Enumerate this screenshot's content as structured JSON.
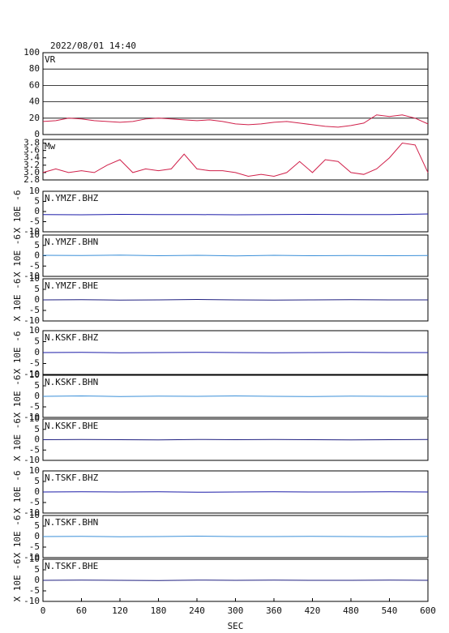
{
  "chart_data": [
    {
      "type": "line",
      "title": "2022/08/01 14:40",
      "xlim": [
        0,
        600
      ],
      "ylim": [
        0,
        100
      ],
      "yticks": [
        0,
        20,
        40,
        60,
        80,
        100
      ],
      "grid": true,
      "x": [
        0,
        20,
        40,
        60,
        80,
        100,
        120,
        140,
        160,
        180,
        200,
        220,
        240,
        260,
        280,
        300,
        320,
        340,
        360,
        380,
        400,
        420,
        440,
        460,
        480,
        500,
        520,
        540,
        560,
        580,
        600
      ],
      "series": [
        {
          "name": "VR",
          "color": "#d0204a",
          "values": [
            16,
            17,
            20,
            19,
            17,
            16,
            15,
            16,
            19,
            20,
            19,
            18,
            17,
            18,
            16,
            13,
            12,
            13,
            15,
            16,
            14,
            12,
            10,
            9,
            11,
            14,
            24,
            22,
            24,
            20,
            13
          ]
        }
      ]
    },
    {
      "type": "line",
      "xlim": [
        0,
        600
      ],
      "ylim": [
        2.8,
        3.9
      ],
      "yticks": [
        {
          "value": 2.8,
          "label": "2.8"
        },
        {
          "value": 3.0,
          "label": "3.0"
        },
        3.2,
        3.4,
        3.6,
        3.8
      ],
      "x": [
        0,
        20,
        40,
        60,
        80,
        100,
        120,
        140,
        160,
        180,
        200,
        220,
        240,
        260,
        280,
        300,
        320,
        340,
        360,
        380,
        400,
        420,
        440,
        460,
        480,
        500,
        520,
        540,
        560,
        580,
        600
      ],
      "series": [
        {
          "name": "Mw",
          "color": "#d0204a",
          "values": [
            3.0,
            3.1,
            3.0,
            3.05,
            3.0,
            3.2,
            3.35,
            3.0,
            3.1,
            3.05,
            3.1,
            3.5,
            3.1,
            3.05,
            3.05,
            3.0,
            2.9,
            2.95,
            2.9,
            3.0,
            3.3,
            3.0,
            3.35,
            3.3,
            3.0,
            2.95,
            3.1,
            3.4,
            3.8,
            3.75,
            3.0
          ]
        }
      ]
    },
    {
      "type": "line",
      "ylabel": "X 10E -6",
      "xlim": [
        0,
        600
      ],
      "ylim": [
        -10,
        10
      ],
      "yticks": [
        -10,
        -5,
        0,
        5,
        10
      ],
      "x": [
        0,
        60,
        120,
        180,
        240,
        300,
        360,
        420,
        480,
        540,
        600
      ],
      "series": [
        {
          "name": "N.YMZF.BHZ",
          "color": "#1c1ca8",
          "values": [
            -1.5,
            -1.6,
            -1.4,
            -1.5,
            -1.5,
            -1.6,
            -1.5,
            -1.4,
            -1.5,
            -1.5,
            -1.2
          ]
        }
      ]
    },
    {
      "type": "line",
      "ylabel": "X 10E -6",
      "xlim": [
        0,
        600
      ],
      "ylim": [
        -10,
        10
      ],
      "yticks": [
        -10,
        -5,
        0,
        5,
        10
      ],
      "x": [
        0,
        60,
        120,
        180,
        240,
        300,
        360,
        420,
        480,
        540,
        600
      ],
      "series": [
        {
          "name": "N.YMZF.BHN",
          "color": "#3a8fd8",
          "values": [
            0.2,
            0.1,
            0.3,
            0,
            0.2,
            -0.1,
            0.2,
            0,
            0.1,
            0,
            0.1
          ]
        }
      ]
    },
    {
      "type": "line",
      "ylabel": "X 10E -6",
      "xlim": [
        0,
        600
      ],
      "ylim": [
        -10,
        10
      ],
      "yticks": [
        -10,
        -5,
        0,
        5,
        10
      ],
      "x": [
        0,
        60,
        120,
        180,
        240,
        300,
        360,
        420,
        480,
        540,
        600
      ],
      "series": [
        {
          "name": "N.YMZF.BHE",
          "color": "#202080",
          "values": [
            0,
            0.1,
            -0.1,
            0,
            0.2,
            0,
            -0.1,
            0,
            0.1,
            0,
            0
          ]
        }
      ]
    },
    {
      "type": "line",
      "ylabel": "X 10E -6",
      "xlim": [
        0,
        600
      ],
      "ylim": [
        -10,
        10
      ],
      "yticks": [
        -10,
        -5,
        0,
        5,
        10
      ],
      "x": [
        0,
        60,
        120,
        180,
        240,
        300,
        360,
        420,
        480,
        540,
        600
      ],
      "series": [
        {
          "name": "N.KSKF.BHZ",
          "color": "#1c1ca8",
          "values": [
            0,
            0.1,
            -0.1,
            0,
            0.1,
            0,
            -0.1,
            0,
            0.1,
            0,
            0
          ]
        }
      ]
    },
    {
      "type": "line",
      "ylabel": "X 10E -6",
      "xlim": [
        0,
        600
      ],
      "ylim": [
        -10,
        10
      ],
      "yticks": [
        -10,
        -5,
        0,
        5,
        10
      ],
      "x": [
        0,
        60,
        120,
        180,
        240,
        300,
        360,
        420,
        480,
        540,
        600
      ],
      "series": [
        {
          "name": "N.KSKF.BHN",
          "color": "#3a8fd8",
          "values": [
            0,
            0.2,
            -0.1,
            0.1,
            0,
            0.2,
            0,
            -0.1,
            0.1,
            0,
            0
          ]
        }
      ]
    },
    {
      "type": "line",
      "ylabel": "X 10E -6",
      "xlim": [
        0,
        600
      ],
      "ylim": [
        -10,
        10
      ],
      "yticks": [
        -10,
        -5,
        0,
        5,
        10
      ],
      "x": [
        0,
        60,
        120,
        180,
        240,
        300,
        360,
        420,
        480,
        540,
        600
      ],
      "series": [
        {
          "name": "N.KSKF.BHE",
          "color": "#202080",
          "values": [
            0,
            0.1,
            0,
            -0.1,
            0.1,
            0,
            0.1,
            0,
            -0.1,
            0,
            0.1
          ]
        }
      ]
    },
    {
      "type": "line",
      "ylabel": "X 10E -6",
      "xlim": [
        0,
        600
      ],
      "ylim": [
        -10,
        10
      ],
      "yticks": [
        -10,
        -5,
        0,
        5,
        10
      ],
      "x": [
        0,
        60,
        120,
        180,
        240,
        300,
        360,
        420,
        480,
        540,
        600
      ],
      "series": [
        {
          "name": "N.TSKF.BHZ",
          "color": "#1c1ca8",
          "values": [
            0,
            0.1,
            0,
            0.1,
            -0.1,
            0,
            0.1,
            0,
            0,
            0.1,
            0
          ]
        }
      ]
    },
    {
      "type": "line",
      "ylabel": "X 10E -6",
      "xlim": [
        0,
        600
      ],
      "ylim": [
        -10,
        10
      ],
      "yticks": [
        -10,
        -5,
        0,
        5,
        10
      ],
      "x": [
        0,
        60,
        120,
        180,
        240,
        300,
        360,
        420,
        480,
        540,
        600
      ],
      "series": [
        {
          "name": "N.TSKF.BHN",
          "color": "#3a8fd8",
          "values": [
            0,
            0.1,
            -0.1,
            0,
            0.2,
            0,
            0,
            0.1,
            0,
            -0.1,
            0.1
          ]
        }
      ]
    },
    {
      "type": "line",
      "ylabel": "X 10E -6",
      "xlabel": "SEC",
      "xlim": [
        0,
        600
      ],
      "ylim": [
        -10,
        10
      ],
      "yticks": [
        -10,
        -5,
        0,
        5,
        10
      ],
      "xticks": [
        0,
        60,
        120,
        180,
        240,
        300,
        360,
        420,
        480,
        540,
        600
      ],
      "x": [
        0,
        60,
        120,
        180,
        240,
        300,
        360,
        420,
        480,
        540,
        600
      ],
      "series": [
        {
          "name": "N.TSKF.BHE",
          "color": "#202080",
          "values": [
            0,
            0.1,
            0,
            -0.1,
            0.1,
            0,
            0.1,
            0,
            0,
            0.1,
            0
          ]
        }
      ]
    }
  ]
}
